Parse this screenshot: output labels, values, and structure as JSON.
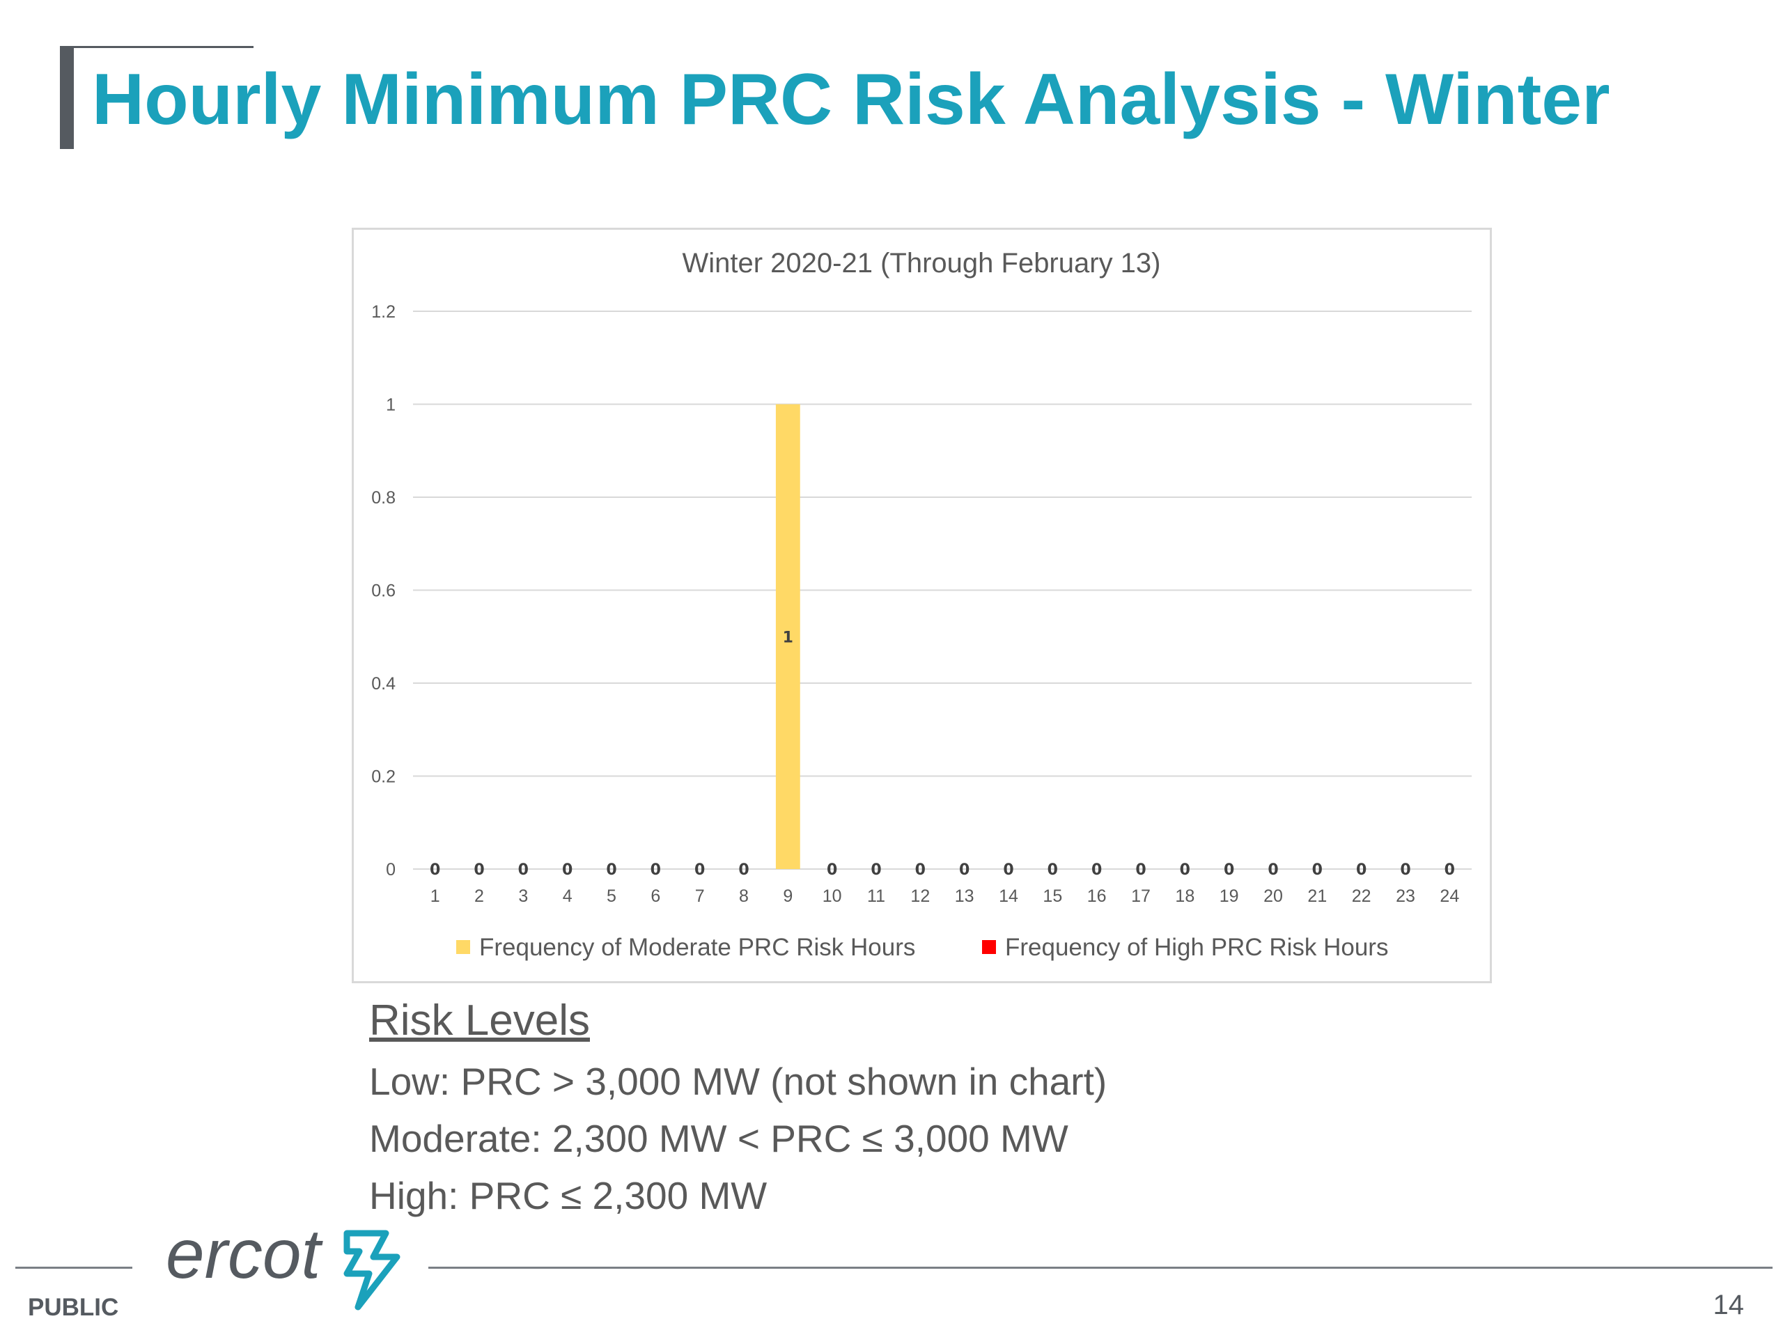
{
  "slide": {
    "title": "Hourly Minimum PRC Risk Analysis - Winter",
    "title_color": "#1ba1bb"
  },
  "chart_data": {
    "type": "bar",
    "title": "Winter 2020-21 (Through February 13)",
    "categories": [
      "1",
      "2",
      "3",
      "4",
      "5",
      "6",
      "7",
      "8",
      "9",
      "10",
      "11",
      "12",
      "13",
      "14",
      "15",
      "16",
      "17",
      "18",
      "19",
      "20",
      "21",
      "22",
      "23",
      "24"
    ],
    "series": [
      {
        "name": "Frequency of Moderate PRC Risk Hours",
        "color": "#ffd966",
        "values": [
          0,
          0,
          0,
          0,
          0,
          0,
          0,
          0,
          1,
          0,
          0,
          0,
          0,
          0,
          0,
          0,
          0,
          0,
          0,
          0,
          0,
          0,
          0,
          0
        ]
      },
      {
        "name": "Frequency of High PRC Risk Hours",
        "color": "#ff0000",
        "values": [
          0,
          0,
          0,
          0,
          0,
          0,
          0,
          0,
          0,
          0,
          0,
          0,
          0,
          0,
          0,
          0,
          0,
          0,
          0,
          0,
          0,
          0,
          0,
          0
        ]
      }
    ],
    "y_ticks": [
      "0",
      "0.2",
      "0.4",
      "0.6",
      "0.8",
      "1",
      "1.2"
    ],
    "ylim": [
      0,
      1.2
    ],
    "grid": true,
    "legend_position": "bottom",
    "stacked": true
  },
  "risk_levels": {
    "heading": "Risk Levels",
    "items": [
      "Low: PRC > 3,000 MW (not shown in chart)",
      "Moderate: 2,300 MW < PRC ≤ 3,000 MW",
      "High: PRC ≤ 2,300 MW"
    ]
  },
  "footer": {
    "classification": "PUBLIC",
    "page_number": "14",
    "logo_text": "ercot"
  }
}
